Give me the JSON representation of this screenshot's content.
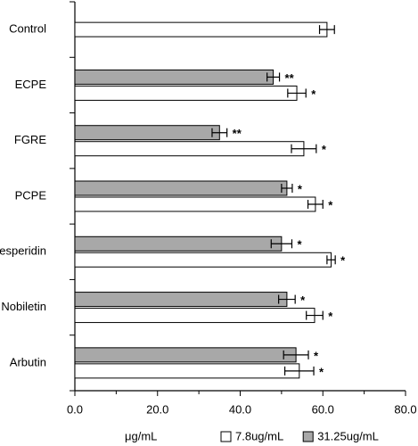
{
  "chart_data": {
    "type": "hbar",
    "x_label": "μg/mL",
    "categories": [
      "Control",
      "ECPE",
      "FGRE",
      "PCPE",
      "Hesperidin",
      "Nobiletin",
      "Arbutin"
    ],
    "series": [
      {
        "name": "7.8ug/mL",
        "color": "#ffffff",
        "values": [
          61,
          53.7,
          55.4,
          58.2,
          62,
          58,
          54.3
        ],
        "errors": [
          1.8,
          2.2,
          3,
          1.8,
          1,
          2,
          3.5
        ],
        "annotations": [
          null,
          "*",
          "*",
          "*",
          "*",
          "*",
          "*"
        ]
      },
      {
        "name": "31.25ug/mL",
        "color": "#a8a8a8",
        "values": [
          null,
          48,
          35,
          51.3,
          50,
          51.3,
          53.5
        ],
        "errors": [
          null,
          1.5,
          1.8,
          1.3,
          2.5,
          2,
          3
        ],
        "annotations": [
          null,
          "**",
          "**",
          "*",
          "*",
          "*",
          "*"
        ]
      }
    ],
    "xlim": [
      0,
      80
    ],
    "xticks": [
      {
        "value": 0,
        "label": "0.0"
      },
      {
        "value": 20,
        "label": "20.0"
      },
      {
        "value": 40,
        "label": "40.0"
      },
      {
        "value": 60,
        "label": "60.0"
      },
      {
        "value": 80,
        "label": "80.0"
      }
    ],
    "legend": "bottom-right"
  }
}
